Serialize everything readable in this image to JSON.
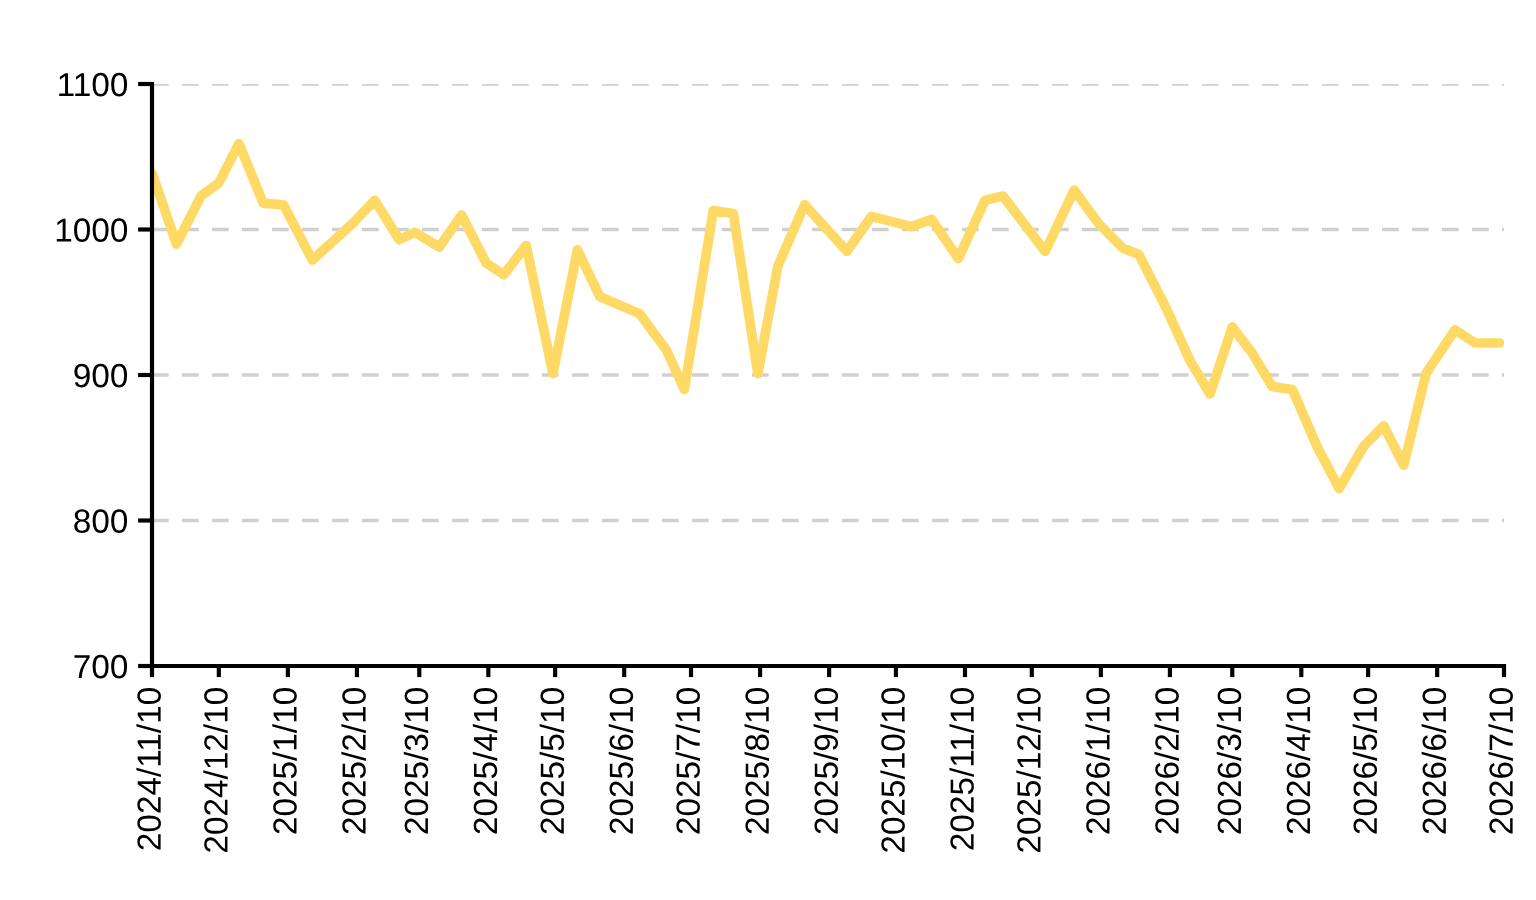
{
  "chart_data": {
    "type": "line",
    "x": [
      "2024-11-10",
      "2024-11-21",
      "2024-12-02",
      "2024-12-10",
      "2024-12-19",
      "2024-12-30",
      "2025-01-08",
      "2025-01-21",
      "2025-02-08",
      "2025-02-18",
      "2025-03-01",
      "2025-03-08",
      "2025-03-19",
      "2025-03-29",
      "2025-04-09",
      "2025-04-17",
      "2025-04-27",
      "2025-05-09",
      "2025-05-20",
      "2025-05-30",
      "2025-06-17",
      "2025-06-29",
      "2025-07-07",
      "2025-07-20",
      "2025-07-29",
      "2025-08-09",
      "2025-08-18",
      "2025-08-30",
      "2025-09-18",
      "2025-09-29",
      "2025-10-17",
      "2025-10-26",
      "2025-11-07",
      "2025-11-19",
      "2025-11-27",
      "2025-12-16",
      "2025-12-29",
      "2026-01-09",
      "2026-01-20",
      "2026-01-27",
      "2026-02-08",
      "2026-02-19",
      "2026-02-28",
      "2026-03-10",
      "2026-03-19",
      "2026-03-28",
      "2026-04-06",
      "2026-04-17",
      "2026-04-27",
      "2026-05-08",
      "2026-05-17",
      "2026-05-26",
      "2026-06-05",
      "2026-06-18",
      "2026-06-27",
      "2026-07-08"
    ],
    "series": [
      {
        "color": "#ffd966",
        "values": [
          1039,
          990,
          1023,
          1032,
          1059,
          1018,
          1017,
          979,
          1004,
          1020,
          993,
          998,
          988,
          1010,
          977,
          969,
          989,
          901,
          986,
          954,
          942,
          917,
          890,
          1013,
          1011,
          901,
          975,
          1017,
          985,
          1009,
          1002,
          1007,
          980,
          1020,
          1023,
          985,
          1027,
          1004,
          987,
          983,
          947,
          910,
          887,
          933,
          915,
          892,
          890,
          851,
          822,
          851,
          865,
          838,
          901,
          931,
          922,
          922
        ]
      }
    ],
    "xlim": [
      "2024-11-10",
      "2026-07-10"
    ],
    "xticks": [
      {
        "value": "2024-11-10",
        "label": "2024/11/10"
      },
      {
        "value": "2024-12-10",
        "label": "2024/12/10"
      },
      {
        "value": "2025-01-10",
        "label": "2025/1/10"
      },
      {
        "value": "2025-02-10",
        "label": "2025/2/10"
      },
      {
        "value": "2025-03-10",
        "label": "2025/3/10"
      },
      {
        "value": "2025-04-10",
        "label": "2025/4/10"
      },
      {
        "value": "2025-05-10",
        "label": "2025/5/10"
      },
      {
        "value": "2025-06-10",
        "label": "2025/6/10"
      },
      {
        "value": "2025-07-10",
        "label": "2025/7/10"
      },
      {
        "value": "2025-08-10",
        "label": "2025/8/10"
      },
      {
        "value": "2025-09-10",
        "label": "2025/9/10"
      },
      {
        "value": "2025-10-10",
        "label": "2025/10/10"
      },
      {
        "value": "2025-11-10",
        "label": "2025/11/10"
      },
      {
        "value": "2025-12-10",
        "label": "2025/12/10"
      },
      {
        "value": "2026-01-10",
        "label": "2026/1/10"
      },
      {
        "value": "2026-02-10",
        "label": "2026/2/10"
      },
      {
        "value": "2026-03-10",
        "label": "2026/3/10"
      },
      {
        "value": "2026-04-10",
        "label": "2026/4/10"
      },
      {
        "value": "2026-05-10",
        "label": "2026/5/10"
      },
      {
        "value": "2026-06-10",
        "label": "2026/6/10"
      },
      {
        "value": "2026-07-10",
        "label": "2026/7/10"
      }
    ],
    "ylim": [
      700,
      1100
    ],
    "yticks": [
      700,
      800,
      900,
      1000,
      1100
    ],
    "grid": "y",
    "legend": false,
    "marker": "none",
    "line_style": "solid"
  }
}
